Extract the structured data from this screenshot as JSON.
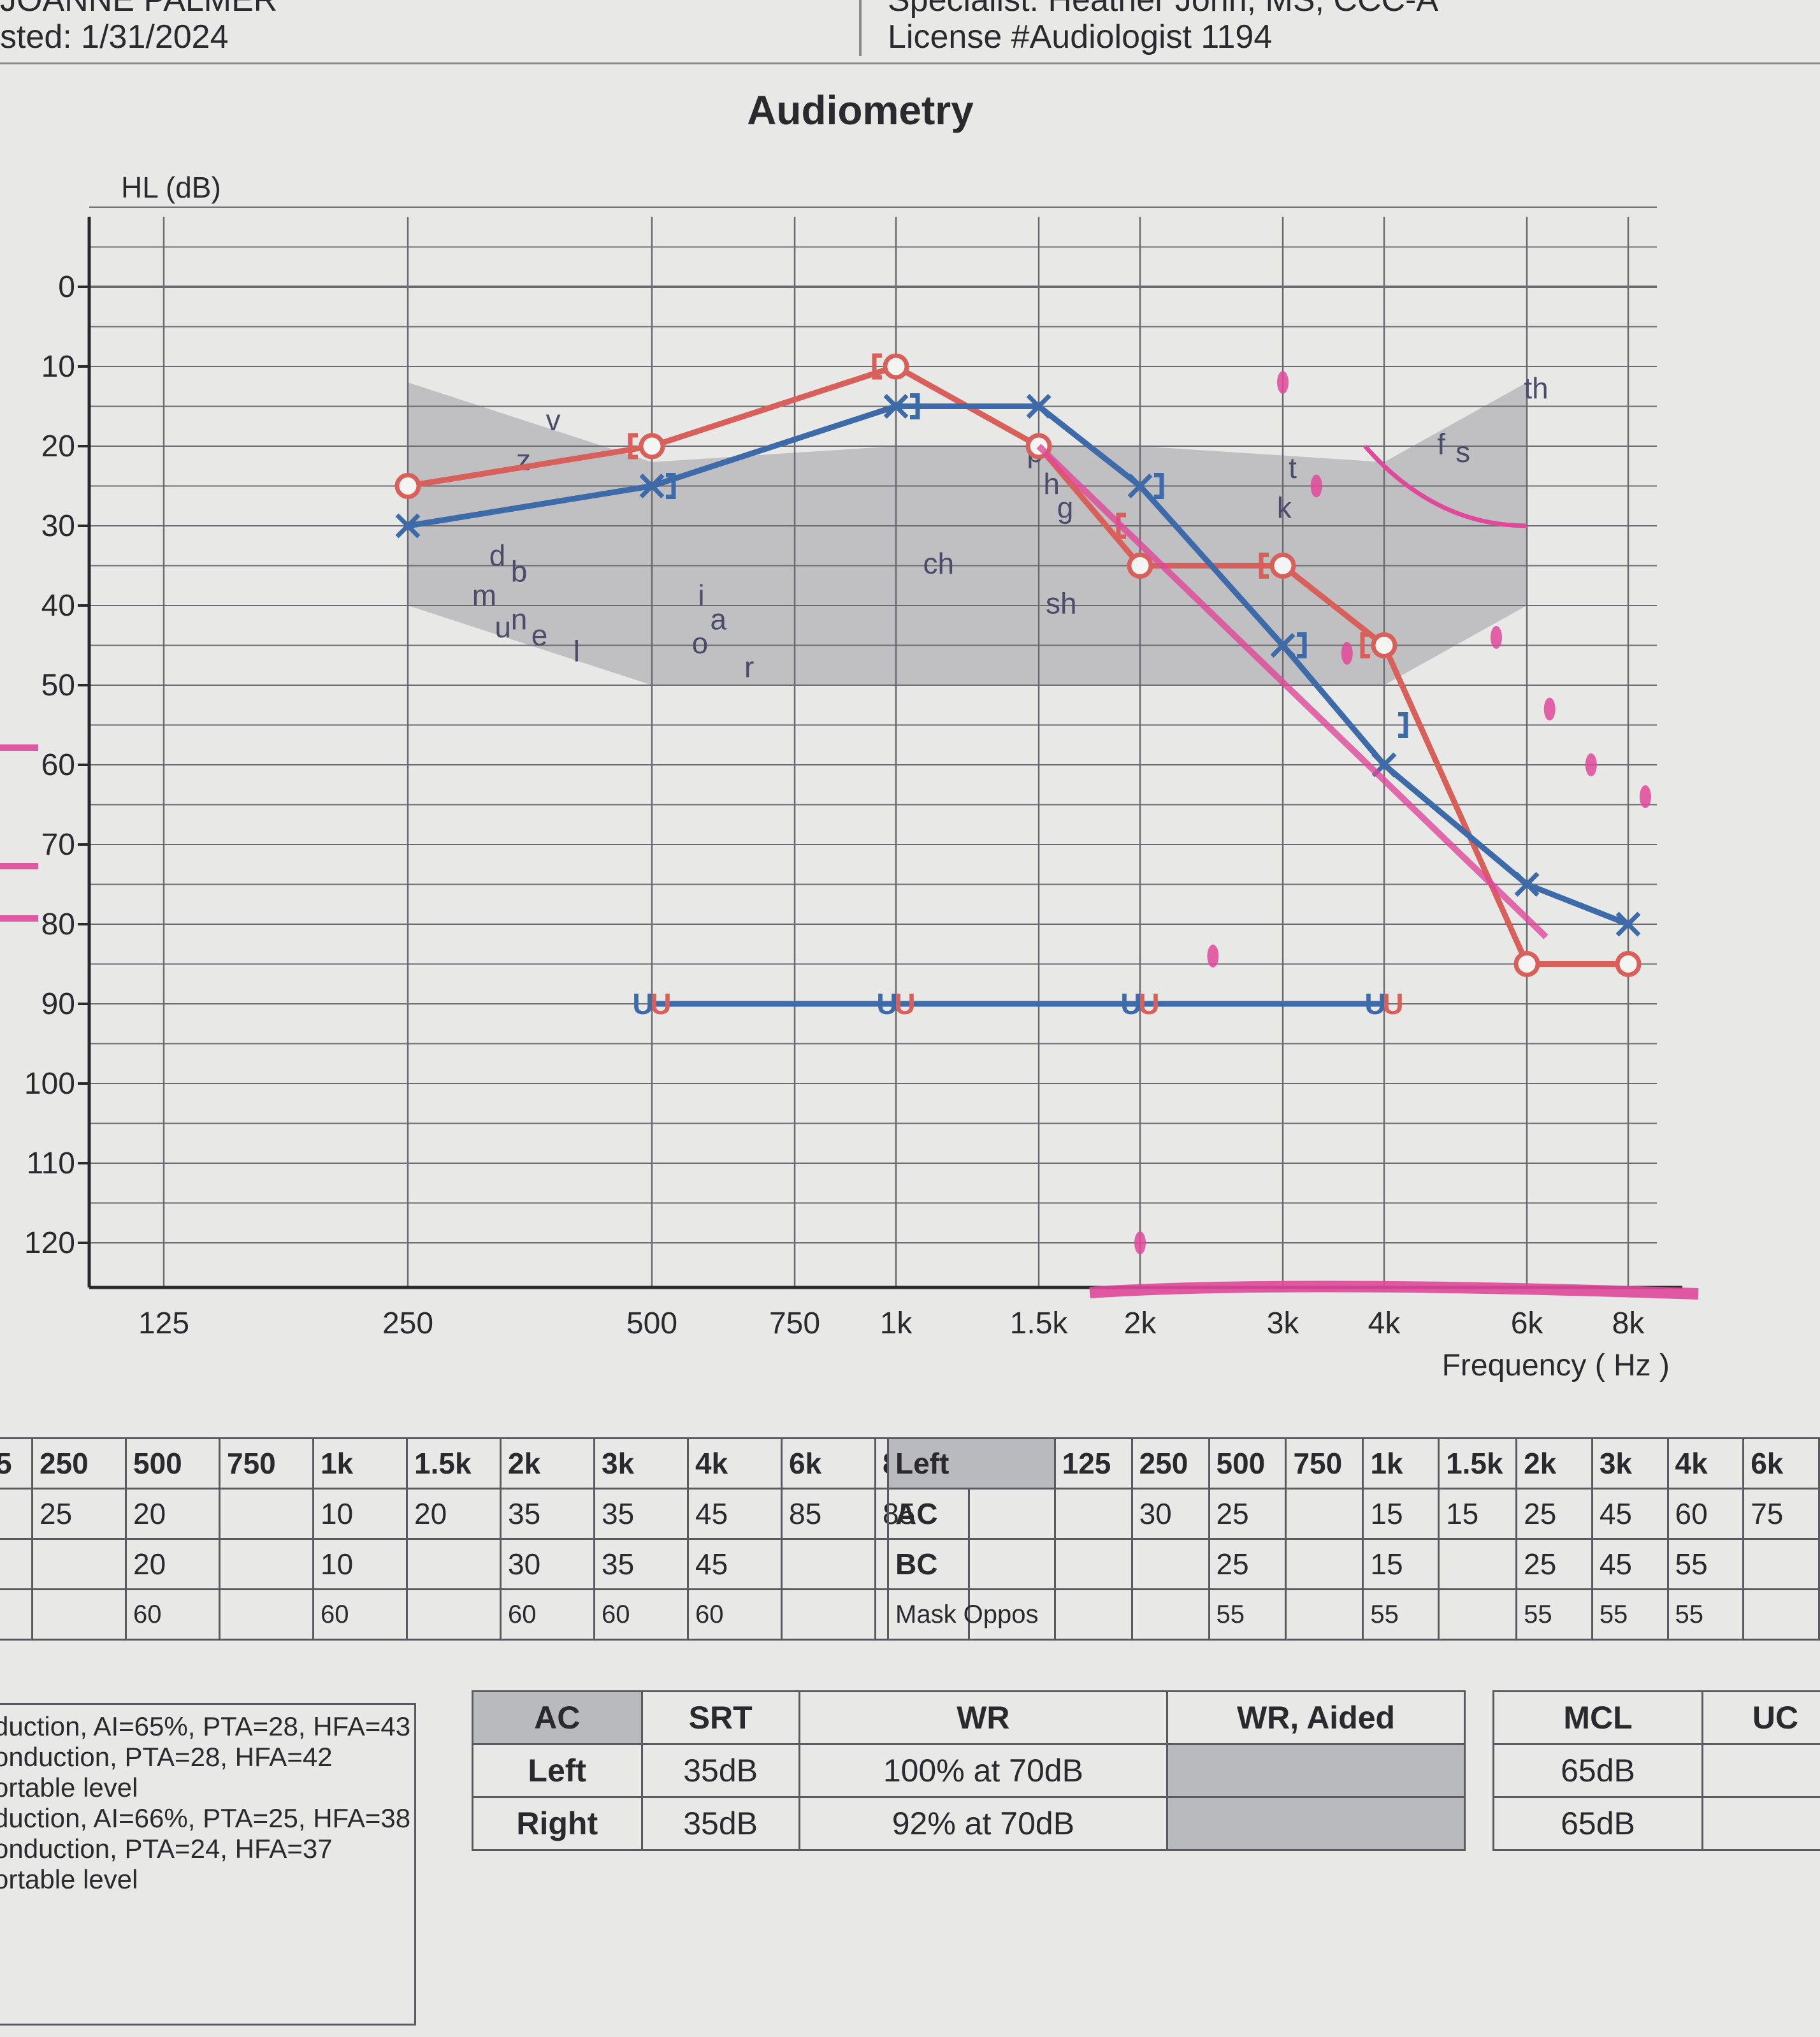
{
  "header": {
    "patient_name": "JOANNE PALMER",
    "tested_label": "sted: 1/31/2024",
    "specialist": "Specialist: Heather John, MS, CCC-A",
    "license": "License #Audiologist 1194"
  },
  "chart_data": {
    "type": "line",
    "title": "Audiometry",
    "ylabel": "HL (dB)",
    "xlabel": "Frequency ( Hz )",
    "y_reversed": true,
    "ylim": [
      -10,
      123
    ],
    "y_ticks": [
      "0",
      "10",
      "20",
      "30",
      "40",
      "50",
      "60",
      "70",
      "80",
      "90",
      "100",
      "110",
      "120"
    ],
    "x_ticks": [
      "125",
      "250",
      "500",
      "750",
      "1k",
      "1.5k",
      "2k",
      "3k",
      "4k",
      "6k",
      "8k"
    ],
    "x_scale": "log",
    "grid": true,
    "speech_banana": {
      "color": "#b9b9bb",
      "labels": [
        "v",
        "z",
        "d",
        "b",
        "m",
        "u",
        "n",
        "e",
        "l",
        "i",
        "o",
        "a",
        "r",
        "ch",
        "sh",
        "p",
        "h",
        "g",
        "k",
        "t",
        "f",
        "s",
        "th"
      ]
    },
    "series": [
      {
        "color": "#d9605a",
        "marker": "circle",
        "x": [
          250,
          500,
          1000,
          1500,
          2000,
          3000,
          4000,
          6000,
          8000
        ],
        "y": [
          25,
          20,
          10,
          20,
          35,
          35,
          45,
          85,
          85
        ]
      },
      {
        "color": "#3d6aa8",
        "marker": "x",
        "x": [
          250,
          500,
          1000,
          1500,
          2000,
          3000,
          4000,
          6000,
          8000
        ],
        "y": [
          30,
          25,
          15,
          15,
          25,
          45,
          60,
          75,
          80
        ]
      },
      {
        "color": "#d9605a",
        "marker": "[",
        "x": [
          500,
          1000,
          2000,
          3000,
          4000
        ],
        "y": [
          20,
          10,
          30,
          35,
          45
        ]
      },
      {
        "color": "#3d6aa8",
        "marker": "]",
        "x": [
          500,
          1000,
          2000,
          3000,
          4000
        ],
        "y": [
          25,
          15,
          25,
          45,
          55
        ]
      },
      {
        "color": "#3d6aa8",
        "marker": "U",
        "x": [
          500,
          1000,
          2000,
          4000
        ],
        "y": [
          90,
          90,
          90,
          90
        ]
      }
    ],
    "annotations": {
      "highlighter_color": "#e0489a",
      "pen_line": {
        "x": [
          1500,
          6000
        ],
        "y": [
          20,
          80
        ]
      },
      "underline_range": [
        "1.5k",
        "8k"
      ]
    }
  },
  "right_ear_table": {
    "headers": [
      "5",
      "250",
      "500",
      "750",
      "1k",
      "1.5k",
      "2k",
      "3k",
      "4k",
      "6k",
      "8k"
    ],
    "rows": [
      [
        "",
        "25",
        "20",
        "",
        "10",
        "20",
        "35",
        "35",
        "45",
        "85",
        "85"
      ],
      [
        "",
        "",
        "20",
        "",
        "10",
        "",
        "30",
        "35",
        "45",
        "",
        ""
      ],
      [
        "",
        "",
        "60",
        "",
        "60",
        "",
        "60",
        "60",
        "60",
        "",
        ""
      ]
    ]
  },
  "left_ear_table": {
    "headers": [
      "Left",
      "125",
      "250",
      "500",
      "750",
      "1k",
      "1.5k",
      "2k",
      "3k",
      "4k",
      "6k"
    ],
    "rows": [
      [
        "AC",
        "",
        "30",
        "25",
        "",
        "15",
        "15",
        "25",
        "45",
        "60",
        "75"
      ],
      [
        "BC",
        "",
        "",
        "25",
        "",
        "15",
        "",
        "25",
        "45",
        "55",
        ""
      ],
      [
        "Mask Oppos",
        "",
        "",
        "55",
        "",
        "55",
        "",
        "55",
        "55",
        "55",
        ""
      ]
    ]
  },
  "summary": {
    "lines": [
      "duction, AI=65%, PTA=28, HFA=43",
      "onduction, PTA=28, HFA=42",
      "ortable level",
      "duction, AI=66%, PTA=25, HFA=38",
      "onduction, PTA=24, HFA=37",
      "ortable level"
    ]
  },
  "speech_table": {
    "headers": [
      "AC",
      "SRT",
      "WR",
      "WR, Aided"
    ],
    "rows": [
      [
        "Left",
        "35dB",
        "100% at 70dB",
        ""
      ],
      [
        "Right",
        "35dB",
        "92% at 70dB",
        ""
      ]
    ]
  },
  "mcl_table": {
    "headers": [
      "MCL",
      "UC"
    ],
    "rows": [
      [
        "65dB",
        ""
      ],
      [
        "65dB",
        ""
      ]
    ]
  }
}
